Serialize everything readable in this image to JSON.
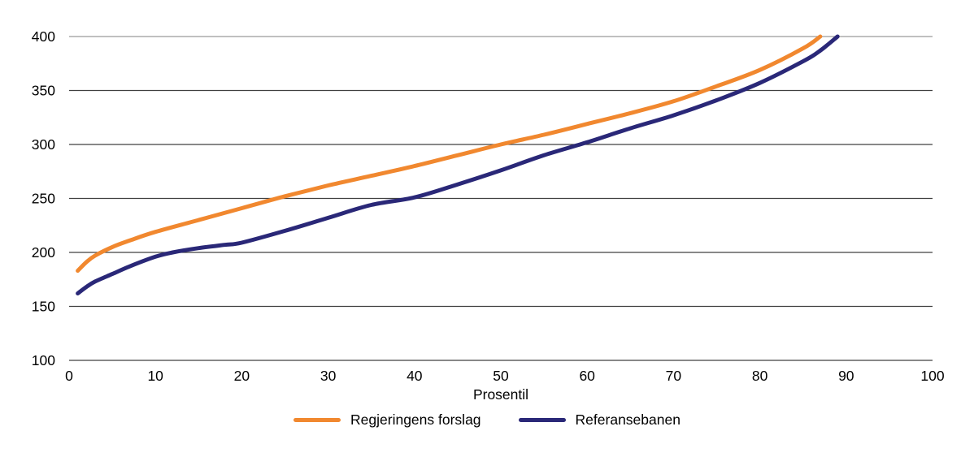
{
  "chart_data": {
    "type": "line",
    "title": "",
    "xlabel": "Prosentil",
    "ylabel": "",
    "xlim": [
      0,
      100
    ],
    "ylim": [
      100,
      400
    ],
    "xticks": [
      0,
      10,
      20,
      30,
      40,
      50,
      60,
      70,
      80,
      90,
      100
    ],
    "yticks": [
      100,
      150,
      200,
      250,
      300,
      350,
      400
    ],
    "grid": "horizontal-only",
    "legend_position": "bottom-center",
    "series": [
      {
        "name": "Regjeringens forslag",
        "color": "#F1882F",
        "x": [
          1,
          2,
          3,
          5,
          7,
          10,
          15,
          20,
          25,
          30,
          35,
          40,
          45,
          50,
          55,
          60,
          65,
          70,
          75,
          80,
          85,
          87
        ],
        "y": [
          183,
          191,
          197,
          205,
          211,
          219,
          230,
          241,
          252,
          262,
          271,
          280,
          290,
          300,
          309,
          319,
          329,
          340,
          354,
          369,
          389,
          400
        ]
      },
      {
        "name": "Referansebanen",
        "color": "#2A2878",
        "x": [
          1,
          2,
          3,
          5,
          7,
          10,
          12,
          15,
          18,
          20,
          25,
          30,
          35,
          40,
          45,
          50,
          55,
          60,
          65,
          70,
          75,
          80,
          85,
          87,
          89
        ],
        "y": [
          162,
          168,
          173,
          180,
          187,
          196,
          200,
          204,
          207,
          209,
          220,
          232,
          244,
          251,
          263,
          276,
          290,
          302,
          315,
          327,
          341,
          357,
          377,
          387,
          400
        ]
      }
    ],
    "colors": {
      "gridline": "#404040",
      "top_gridline": "#9a9a9a",
      "axis_line": "#404040",
      "text": "#000000",
      "background": "#ffffff"
    }
  }
}
